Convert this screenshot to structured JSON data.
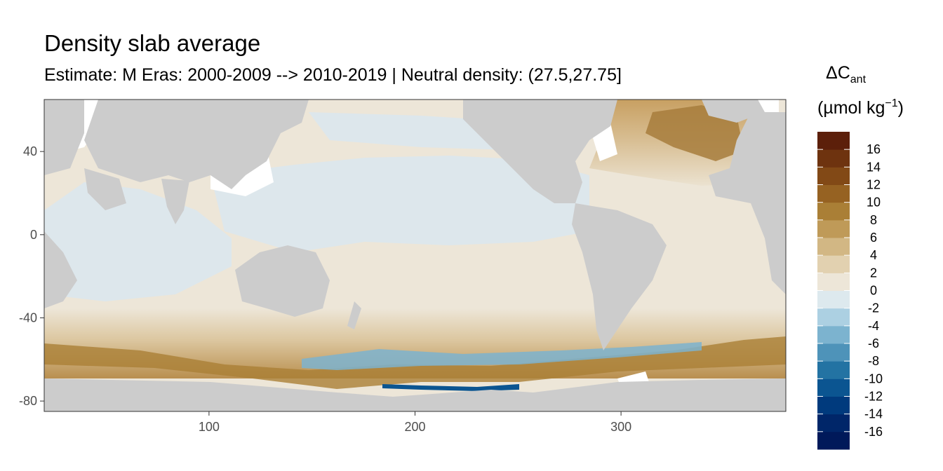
{
  "title": "Density slab average",
  "subtitle": "Estimate: M Eras: 2000-2009 --> 2010-2019 | Neutral density: (27.5,27.75]",
  "chart_data": {
    "type": "heatmap",
    "title": "Density slab average",
    "subtitle": "Estimate: M Eras: 2000-2009 --> 2010-2019 | Neutral density: (27.5,27.75]",
    "xlabel": "",
    "ylabel": "",
    "xlim": [
      20,
      380
    ],
    "ylim": [
      -85,
      65
    ],
    "x_ticks": [
      100,
      200,
      300
    ],
    "y_ticks": [
      40,
      0,
      -40,
      -80
    ],
    "grid": false,
    "legend_position": "right",
    "legend": {
      "title": "ΔC",
      "title_subscript": "ant",
      "unit": "(µmol kg",
      "unit_superscript": "−1",
      "unit_close": ")",
      "breaks": [
        -18,
        -16,
        -14,
        -12,
        -10,
        -8,
        -6,
        -4,
        -2,
        0,
        2,
        4,
        6,
        8,
        10,
        12,
        14,
        16,
        18
      ],
      "labels": [
        "16",
        "14",
        "12",
        "10",
        "8",
        "6",
        "4",
        "2",
        "0",
        "-2",
        "-4",
        "-6",
        "-8",
        "-10",
        "-12",
        "-14",
        "-16"
      ],
      "colors": [
        "#00195a",
        "#002669",
        "#003a7d",
        "#0b5591",
        "#2373a3",
        "#4e93b9",
        "#7cb3cf",
        "#acd0e2",
        "#dde9ee",
        "#ede6d8",
        "#e2d1b0",
        "#d2b784",
        "#bf9a58",
        "#aa7f36",
        "#966222",
        "#824916",
        "#6e330f",
        "#5c1f0a"
      ]
    },
    "land_color": "#cccccc",
    "missing_color": "#ffffff"
  }
}
